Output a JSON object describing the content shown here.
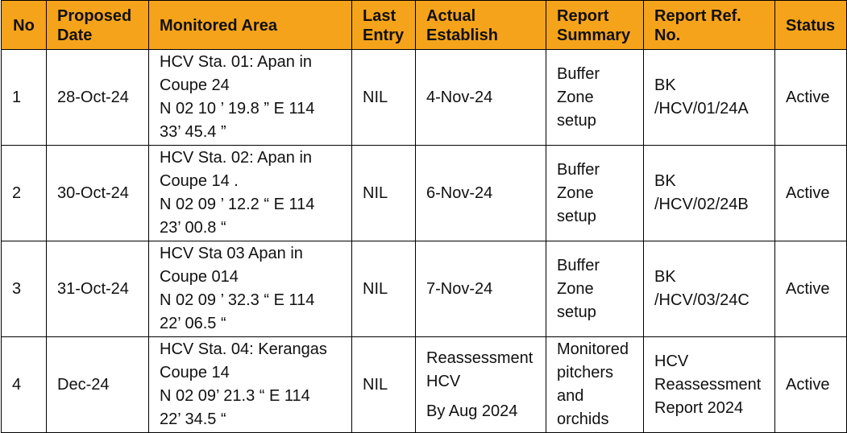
{
  "header": {
    "no": "No",
    "proposed_1": "Proposed",
    "proposed_2": "Date",
    "monitored": "Monitored Area",
    "last_1": "Last",
    "last_2": "Entry",
    "actual_1": "Actual",
    "actual_2": "Establish",
    "report_1": "Report",
    "report_2": "Summary",
    "ref_1": "Report Ref.",
    "ref_2": "No.",
    "status": "Status"
  },
  "rows": [
    {
      "no": "1",
      "date": "28-Oct-24",
      "area_1": "HCV Sta. 01: Apan  in",
      "area_2": "Coupe 24",
      "area_3": "N 02  10 ’ 19.8 ” E 114",
      "area_4": "33’  45.4 ”",
      "last": "NIL",
      "actual_1": "4-Nov-24",
      "summary_1": "Buffer",
      "summary_2": "Zone",
      "summary_3": "setup",
      "ref_1": "BK",
      "ref_2": "/HCV/01/24A",
      "status": "Active"
    },
    {
      "no": "2",
      "date": "30-Oct-24",
      "area_1": "HCV Sta. 02: Apan in",
      "area_2": "Coupe 14 .",
      "area_3": "N 02  09 ’ 12.2 “ E 114",
      "area_4": "23’ 00.8 “",
      "last": "NIL",
      "actual_1": "6-Nov-24",
      "summary_1": "Buffer",
      "summary_2": "Zone",
      "summary_3": "setup",
      "ref_1": "BK",
      "ref_2": "/HCV/02/24B",
      "status": "Active"
    },
    {
      "no": "3",
      "date": "31-Oct-24",
      "area_1": "HCV Sta 03 Apan  in",
      "area_2": "Coupe 014",
      "area_3": "N 02 09 ’ 32.3 “ E 114",
      "area_4": "22’ 06.5 “",
      "last": "NIL",
      "actual_1": "7-Nov-24",
      "summary_1": "Buffer",
      "summary_2": "Zone",
      "summary_3": "setup",
      "ref_1": "BK",
      "ref_2": "/HCV/03/24C",
      "status": "Active"
    },
    {
      "no": "4",
      "date": "Dec-24",
      "area_1": "HCV Sta. 04: Kerangas",
      "area_2": "Coupe 14",
      "area_3": "N 02 09’ 21.3 “ E 114",
      "area_4": "22’ 34.5 “",
      "last": "NIL",
      "actual_1": "Reassessment",
      "actual_2": "HCV",
      "actual_3": "By Aug 2024",
      "summary_1": "Monitored",
      "summary_2": "pitchers",
      "summary_3": "and",
      "summary_4": "orchids",
      "ref_1": "HCV",
      "ref_2": "Reassessment",
      "ref_3": "Report 2024",
      "status": "Active"
    }
  ]
}
